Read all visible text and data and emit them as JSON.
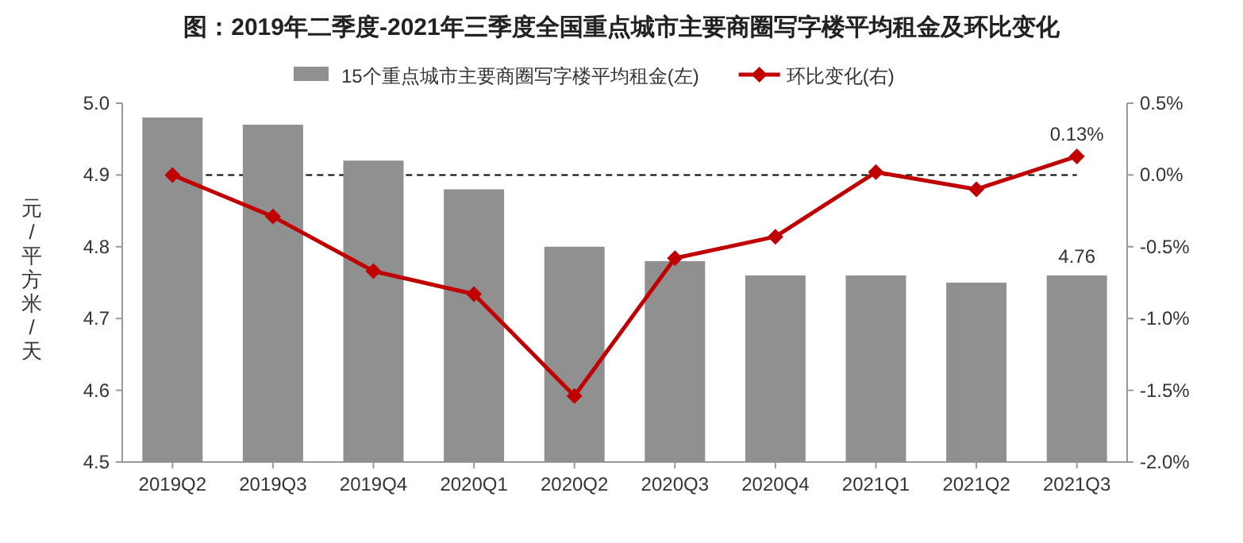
{
  "chart_data": {
    "type": "bar",
    "title": "图：2019年二季度-2021年三季度全国重点城市主要商圈写字楼平均租金及环比变化",
    "ylabel": "元/平方米/天",
    "categories": [
      "2019Q2",
      "2019Q3",
      "2019Q4",
      "2020Q1",
      "2020Q2",
      "2020Q3",
      "2020Q4",
      "2021Q1",
      "2021Q2",
      "2021Q3"
    ],
    "series": [
      {
        "name": "15个重点城市主要商圈写字楼平均租金(左)",
        "type": "bar",
        "color": "#909090",
        "values": [
          4.98,
          4.97,
          4.92,
          4.88,
          4.8,
          4.78,
          4.76,
          4.76,
          4.75,
          4.76
        ],
        "value_labels": [
          null,
          null,
          null,
          null,
          null,
          null,
          null,
          null,
          null,
          "4.76"
        ]
      },
      {
        "name": "环比变化(右)",
        "type": "line",
        "axis": "y2",
        "color": "#c00000",
        "marker": "diamond",
        "values": [
          0.0,
          -0.29,
          -0.67,
          -0.83,
          -1.54,
          -0.58,
          -0.43,
          0.02,
          -0.1,
          0.13
        ],
        "value_labels": [
          null,
          null,
          null,
          null,
          null,
          null,
          null,
          null,
          null,
          "0.13%"
        ]
      }
    ],
    "ylim": [
      4.5,
      5.0
    ],
    "yticks": [
      {
        "value": 4.5,
        "label": "4.5"
      },
      {
        "value": 4.6,
        "label": "4.6"
      },
      {
        "value": 4.7,
        "label": "4.7"
      },
      {
        "value": 4.8,
        "label": "4.8"
      },
      {
        "value": 4.9,
        "label": "4.9"
      },
      {
        "value": 5.0,
        "label": "5.0"
      }
    ],
    "y2lim": [
      -2.0,
      0.5
    ],
    "y2ticks": [
      {
        "value": -2.0,
        "label": "-2.0%"
      },
      {
        "value": -1.5,
        "label": "-1.5%"
      },
      {
        "value": -1.0,
        "label": "-1.0%"
      },
      {
        "value": -0.5,
        "label": "-0.5%"
      },
      {
        "value": 0.0,
        "label": "0.0%"
      },
      {
        "value": 0.5,
        "label": "0.5%"
      }
    ],
    "ref_lines": [
      {
        "axis": "y2",
        "value": 0,
        "color": "#000000",
        "line_style": "dashed"
      }
    ],
    "legend": "top",
    "grid": false
  }
}
